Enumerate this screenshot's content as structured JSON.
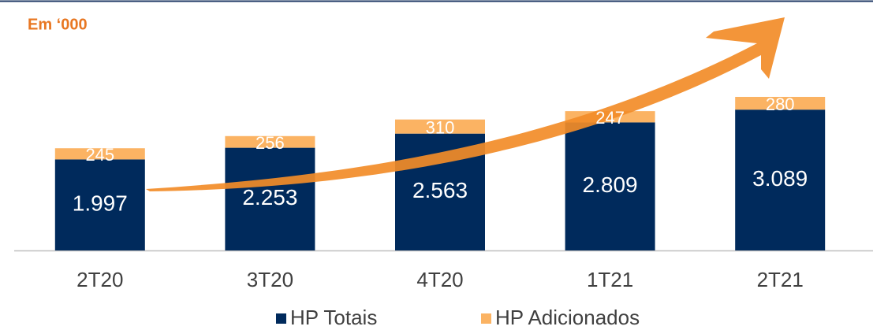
{
  "chart_data": {
    "type": "stacked-bar",
    "title": "Em ‘000",
    "categories": [
      "2T20",
      "3T20",
      "4T20",
      "1T21",
      "2T21"
    ],
    "series": [
      {
        "name": "HP Totais",
        "color": "#002a5c",
        "values": [
          1997,
          2253,
          2563,
          2809,
          3089
        ],
        "value_labels": [
          "1.997",
          "2.253",
          "2.563",
          "2.809",
          "3.089"
        ]
      },
      {
        "name": "HP Adicionados",
        "color": "#fbb363",
        "values": [
          245,
          256,
          310,
          247,
          280
        ]
      }
    ]
  }
}
